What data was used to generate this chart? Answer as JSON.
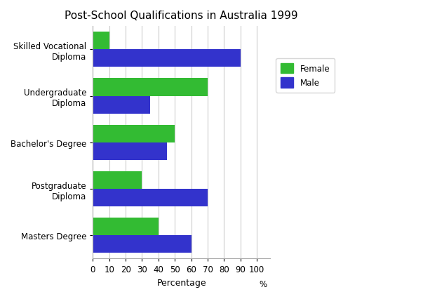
{
  "title": "Post-School Qualifications in Australia 1999",
  "categories": [
    "Skilled Vocational\nDiploma",
    "Undergraduate\nDiploma",
    "Bachelor's Degree",
    "Postgraduate\nDiploma",
    "Masters Degree"
  ],
  "female_values": [
    10,
    70,
    50,
    30,
    40
  ],
  "male_values": [
    90,
    35,
    45,
    70,
    60
  ],
  "female_color": "#33bb33",
  "male_color": "#3333cc",
  "xlabel": "Percentage",
  "xlim": [
    0,
    108
  ],
  "xticks": [
    0,
    10,
    20,
    30,
    40,
    50,
    60,
    70,
    80,
    90,
    100
  ],
  "xtick_labels": [
    "0",
    "10",
    "20",
    "30",
    "40",
    "50",
    "60",
    "70",
    "80",
    "90",
    "100"
  ],
  "bar_height": 0.38,
  "title_fontsize": 11,
  "label_fontsize": 9,
  "tick_fontsize": 8.5,
  "legend_labels": [
    "Female",
    "Male"
  ],
  "background_color": "#ffffff",
  "grid_color": "#cccccc"
}
